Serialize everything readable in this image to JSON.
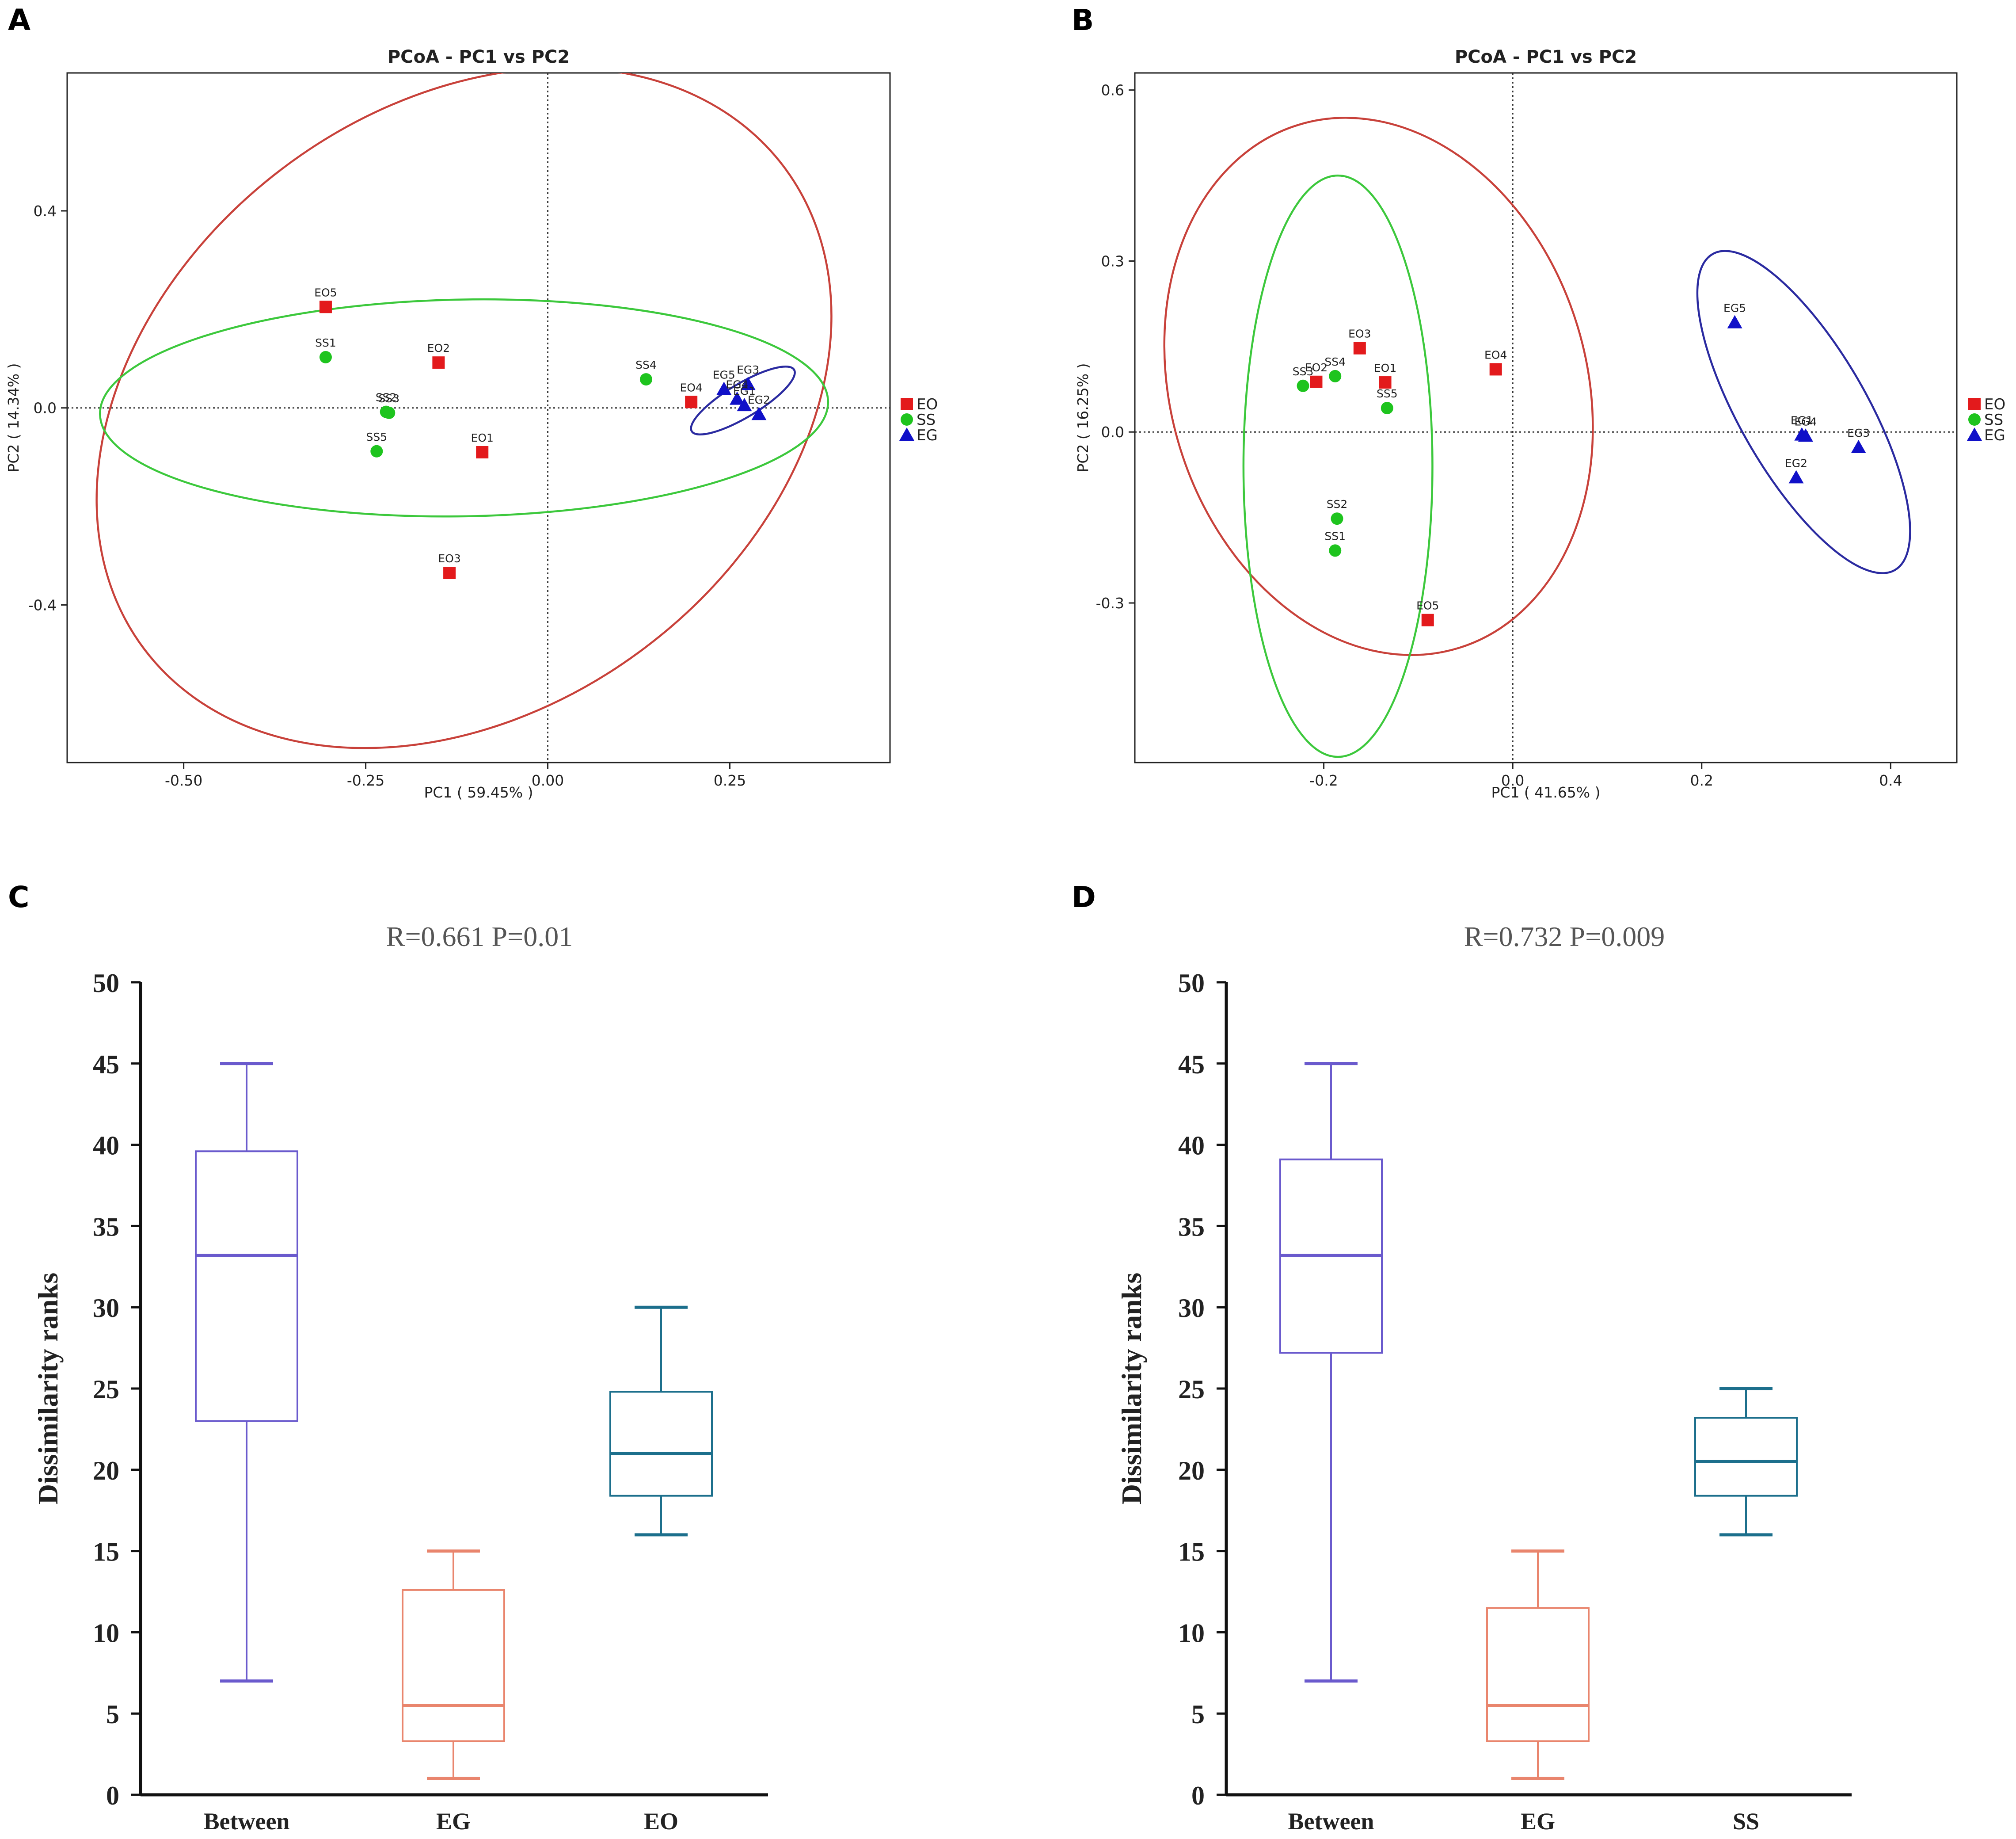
{
  "panels": [
    {
      "letter": "A"
    },
    {
      "letter": "B"
    },
    {
      "letter": "C"
    },
    {
      "letter": "D"
    }
  ],
  "colors": {
    "EO": "#e31a1c",
    "SS": "#1ec41e",
    "EG": "#1010c8",
    "ellipse_EO": "#c8413a",
    "ellipse_SS": "#3cc83c",
    "ellipse_EG": "#2a2aa0",
    "box_Between": "#6a5acd",
    "box_EG": "#e9856d",
    "box_third": "#1c6f8c"
  },
  "chart_data": [
    {
      "panel": "A",
      "type": "scatter",
      "title": "PCoA - PC1 vs PC2",
      "xlabel": "PC1 ( 59.45% )",
      "ylabel": "PC2 ( 14.34% )",
      "xlim": [
        -0.66,
        0.47
      ],
      "ylim": [
        -0.72,
        0.68
      ],
      "xticks": [
        -0.5,
        -0.25,
        0.0,
        0.25
      ],
      "xtick_labels": [
        "-0.50",
        "-0.25",
        "0.00",
        "0.25"
      ],
      "yticks": [
        -0.4,
        0.0,
        0.4
      ],
      "ytick_labels": [
        "-0.4",
        "0.0",
        "0.4"
      ],
      "legend": [
        {
          "name": "EO",
          "marker": "square"
        },
        {
          "name": "SS",
          "marker": "circle"
        },
        {
          "name": "EG",
          "marker": "triangle"
        }
      ],
      "points": [
        {
          "label": "EO5",
          "group": "EO",
          "x": -0.305,
          "y": 0.205
        },
        {
          "label": "EO2",
          "group": "EO",
          "x": -0.15,
          "y": 0.092
        },
        {
          "label": "EO1",
          "group": "EO",
          "x": -0.09,
          "y": -0.09
        },
        {
          "label": "EO3",
          "group": "EO",
          "x": -0.135,
          "y": -0.335
        },
        {
          "label": "EO4",
          "group": "EO",
          "x": 0.197,
          "y": 0.012
        },
        {
          "label": "SS1",
          "group": "SS",
          "x": -0.305,
          "y": 0.103
        },
        {
          "label": "SS2",
          "group": "SS",
          "x": -0.222,
          "y": -0.008
        },
        {
          "label": "SS3",
          "group": "SS",
          "x": -0.218,
          "y": -0.01
        },
        {
          "label": "SS5",
          "group": "SS",
          "x": -0.235,
          "y": -0.088
        },
        {
          "label": "SS4",
          "group": "SS",
          "x": 0.135,
          "y": 0.058
        },
        {
          "label": "EG3",
          "group": "EG",
          "x": 0.275,
          "y": 0.048
        },
        {
          "label": "EG5",
          "group": "EG",
          "x": 0.242,
          "y": 0.038
        },
        {
          "label": "EG4",
          "group": "EG",
          "x": 0.26,
          "y": 0.018
        },
        {
          "label": "EG1",
          "group": "EG",
          "x": 0.27,
          "y": 0.005
        },
        {
          "label": "EG2",
          "group": "EG",
          "x": 0.29,
          "y": -0.013
        }
      ],
      "ellipses": [
        {
          "group": "EO",
          "cx": -0.115,
          "cy": 0.0,
          "rx": 0.55,
          "ry": 0.61,
          "angle": -37
        },
        {
          "group": "SS",
          "cx": -0.115,
          "cy": 0.0,
          "rx": 0.5,
          "ry": 0.22,
          "angle": -1
        },
        {
          "group": "EG",
          "cx": 0.268,
          "cy": 0.015,
          "rx": 0.082,
          "ry": 0.034,
          "angle": -31
        }
      ]
    },
    {
      "panel": "B",
      "type": "scatter",
      "title": "PCoA - PC1 vs PC2",
      "xlabel": "PC1 ( 41.65% )",
      "ylabel": "PC2 ( 16.25% )",
      "xlim": [
        -0.4,
        0.47
      ],
      "ylim": [
        -0.58,
        0.63
      ],
      "xticks": [
        -0.2,
        0.0,
        0.2,
        0.4
      ],
      "xtick_labels": [
        "-0.2",
        "0.0",
        "0.2",
        "0.4"
      ],
      "yticks": [
        -0.3,
        0.0,
        0.3,
        0.6
      ],
      "ytick_labels": [
        "-0.3",
        "0.0",
        "0.3",
        "0.6"
      ],
      "legend": [
        {
          "name": "EO",
          "marker": "square"
        },
        {
          "name": "SS",
          "marker": "circle"
        },
        {
          "name": "EG",
          "marker": "triangle"
        }
      ],
      "points": [
        {
          "label": "EO3",
          "group": "EO",
          "x": -0.162,
          "y": 0.147
        },
        {
          "label": "EO2",
          "group": "EO",
          "x": -0.208,
          "y": 0.088
        },
        {
          "label": "EO1",
          "group": "EO",
          "x": -0.135,
          "y": 0.087
        },
        {
          "label": "EO4",
          "group": "EO",
          "x": -0.018,
          "y": 0.11
        },
        {
          "label": "EO5",
          "group": "EO",
          "x": -0.09,
          "y": -0.33
        },
        {
          "label": "SS3",
          "group": "SS",
          "x": -0.222,
          "y": 0.081
        },
        {
          "label": "SS4",
          "group": "SS",
          "x": -0.188,
          "y": 0.098
        },
        {
          "label": "SS5",
          "group": "SS",
          "x": -0.133,
          "y": 0.042
        },
        {
          "label": "SS2",
          "group": "SS",
          "x": -0.186,
          "y": -0.152
        },
        {
          "label": "SS1",
          "group": "SS",
          "x": -0.188,
          "y": -0.208
        },
        {
          "label": "EG5",
          "group": "EG",
          "x": 0.235,
          "y": 0.192
        },
        {
          "label": "EG1",
          "group": "EG",
          "x": 0.306,
          "y": -0.005
        },
        {
          "label": "EG4",
          "group": "EG",
          "x": 0.31,
          "y": -0.007
        },
        {
          "label": "EG3",
          "group": "EG",
          "x": 0.366,
          "y": -0.027
        },
        {
          "label": "EG2",
          "group": "EG",
          "x": 0.3,
          "y": -0.08
        }
      ],
      "ellipses": [
        {
          "group": "EO",
          "cx": -0.142,
          "cy": 0.08,
          "rx": 0.22,
          "ry": 0.48,
          "angle": -17
        },
        {
          "group": "SS",
          "cx": -0.185,
          "cy": -0.06,
          "rx": 0.1,
          "ry": 0.51,
          "angle": 0
        },
        {
          "group": "EG",
          "cx": 0.308,
          "cy": 0.035,
          "rx": 0.067,
          "ry": 0.32,
          "angle": -30
        }
      ]
    },
    {
      "panel": "C",
      "type": "boxplot",
      "title": "R=0.661 P=0.01",
      "ylabel": "Dissimilarity ranks",
      "ylim": [
        0,
        50
      ],
      "yticks": [
        0,
        5,
        10,
        15,
        20,
        25,
        30,
        35,
        40,
        45,
        50
      ],
      "categories": [
        "Between",
        "EG",
        "EO"
      ],
      "boxes": [
        {
          "name": "Between",
          "min": 7,
          "q1": 23,
          "median": 33.2,
          "q3": 39.6,
          "max": 45
        },
        {
          "name": "EG",
          "min": 1,
          "q1": 3.3,
          "median": 5.5,
          "q3": 12.6,
          "max": 15
        },
        {
          "name": "EO",
          "min": 16,
          "q1": 18.4,
          "median": 21,
          "q3": 24.8,
          "max": 30
        }
      ]
    },
    {
      "panel": "D",
      "type": "boxplot",
      "title": "R=0.732 P=0.009",
      "ylabel": "Dissimilarity ranks",
      "ylim": [
        0,
        50
      ],
      "yticks": [
        0,
        5,
        10,
        15,
        20,
        25,
        30,
        35,
        40,
        45,
        50
      ],
      "categories": [
        "Between",
        "EG",
        "SS"
      ],
      "boxes": [
        {
          "name": "Between",
          "min": 7,
          "q1": 27.2,
          "median": 33.2,
          "q3": 39.1,
          "max": 45
        },
        {
          "name": "EG",
          "min": 1,
          "q1": 3.3,
          "median": 5.5,
          "q3": 11.5,
          "max": 15
        },
        {
          "name": "SS",
          "min": 16,
          "q1": 18.4,
          "median": 20.5,
          "q3": 23.2,
          "max": 25
        }
      ]
    }
  ]
}
